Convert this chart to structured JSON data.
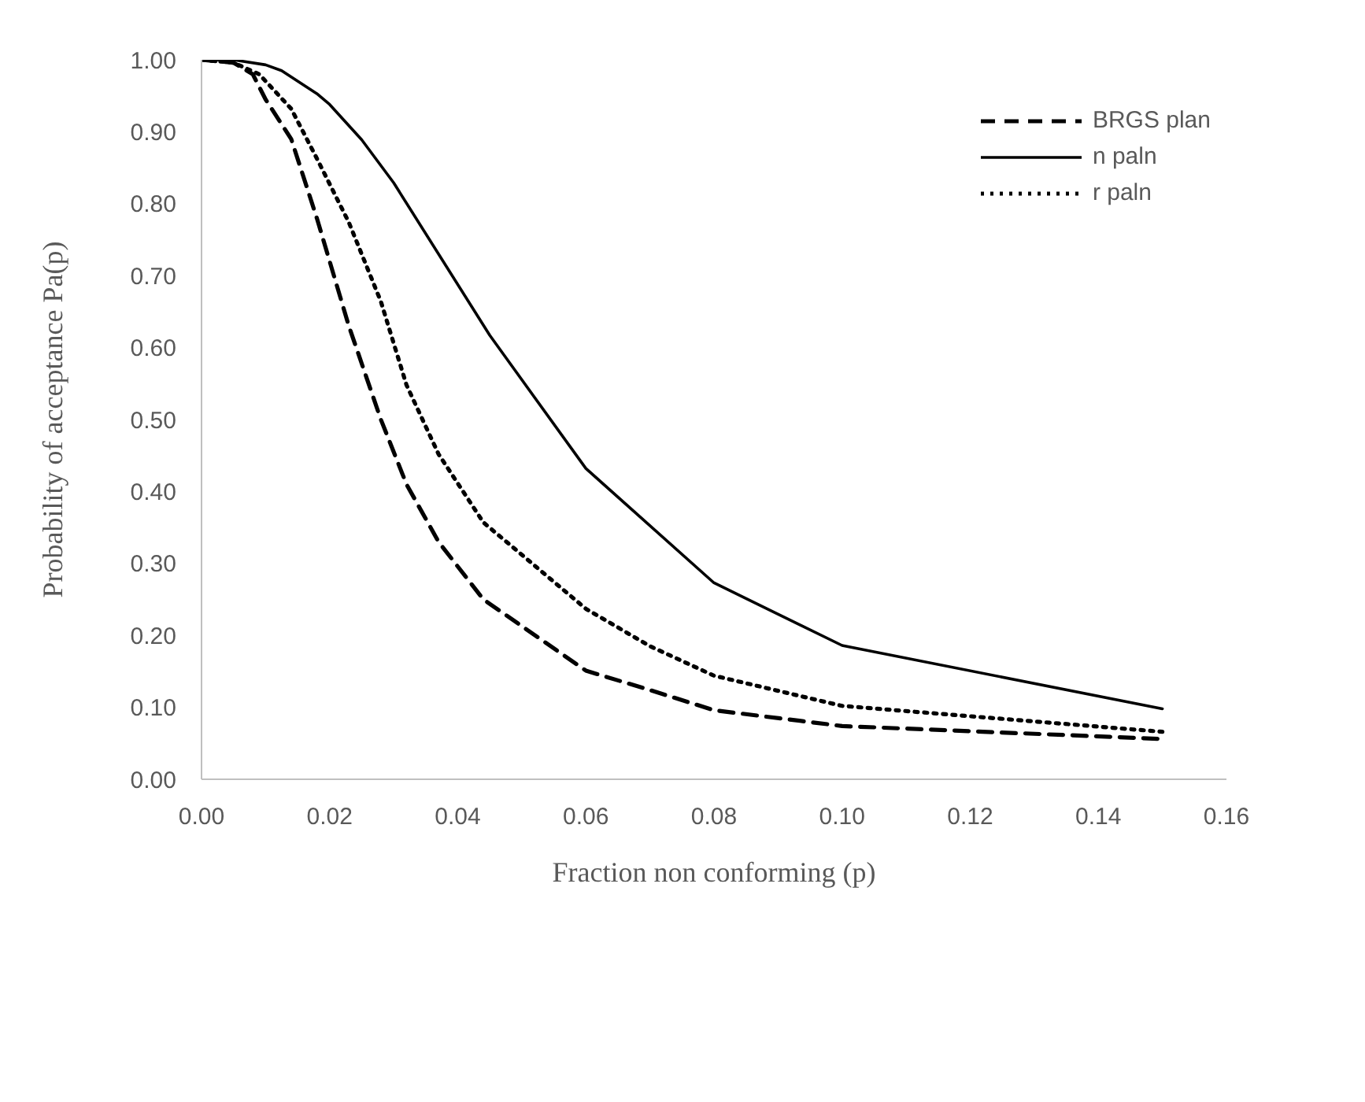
{
  "chart_data": {
    "type": "line",
    "xlabel": "Fraction non conforming (p)",
    "ylabel": "Probability of acceptance Pa(p)",
    "xlim": [
      0,
      0.16
    ],
    "xticks": [
      {
        "value": 0,
        "label": "0.00"
      },
      {
        "value": 0.02,
        "label": "0.02"
      },
      {
        "value": 0.04,
        "label": "0.04"
      },
      {
        "value": 0.06,
        "label": "0.06"
      },
      {
        "value": 0.08,
        "label": "0.08"
      },
      {
        "value": 0.1,
        "label": "0.10"
      },
      {
        "value": 0.12,
        "label": "0.12"
      },
      {
        "value": 0.14,
        "label": "0.14"
      },
      {
        "value": 0.16,
        "label": "0.16"
      }
    ],
    "ylim": [
      0,
      1
    ],
    "yticks": [
      {
        "value": 0,
        "label": "0.00"
      },
      {
        "value": 0.1,
        "label": "0.10"
      },
      {
        "value": 0.2,
        "label": "0.20"
      },
      {
        "value": 0.3,
        "label": "0.30"
      },
      {
        "value": 0.4,
        "label": "0.40"
      },
      {
        "value": 0.5,
        "label": "0.50"
      },
      {
        "value": 0.6,
        "label": "0.60"
      },
      {
        "value": 0.7,
        "label": "0.70"
      },
      {
        "value": 0.8,
        "label": "0.80"
      },
      {
        "value": 0.9,
        "label": "0.90"
      },
      {
        "value": 1,
        "label": "1.00"
      }
    ],
    "grid": false,
    "legend": "top right",
    "marker": "none",
    "series": [
      {
        "name": "BRGS plan",
        "color": "#000000",
        "line_style": "dashed",
        "x": [
          0,
          0.005,
          0.008,
          0.01,
          0.014,
          0.018,
          0.023,
          0.028,
          0.032,
          0.037,
          0.044,
          0.06,
          0.07,
          0.08,
          0.1,
          0.15
        ],
        "values": [
          1,
          0.996,
          0.98,
          0.945,
          0.89,
          0.78,
          0.63,
          0.5,
          0.41,
          0.33,
          0.25,
          0.151,
          0.124,
          0.096,
          0.074,
          0.056
        ]
      },
      {
        "name": "n paln",
        "color": "#000000",
        "line_style": "solid",
        "x": [
          0,
          0.005,
          0.01,
          0.0125,
          0.018,
          0.02,
          0.025,
          0.03,
          0.045,
          0.06,
          0.08,
          0.1,
          0.15
        ],
        "values": [
          1,
          1,
          0.993,
          0.985,
          0.953,
          0.938,
          0.889,
          0.829,
          0.617,
          0.432,
          0.273,
          0.186,
          0.098
        ]
      },
      {
        "name": "r paln",
        "color": "#000000",
        "line_style": "dotted",
        "x": [
          0,
          0.005,
          0.009,
          0.014,
          0.018,
          0.023,
          0.028,
          0.032,
          0.037,
          0.044,
          0.06,
          0.07,
          0.08,
          0.1,
          0.15
        ],
        "values": [
          1,
          0.996,
          0.98,
          0.932,
          0.863,
          0.774,
          0.664,
          0.548,
          0.452,
          0.357,
          0.237,
          0.185,
          0.144,
          0.102,
          0.066
        ]
      }
    ]
  }
}
